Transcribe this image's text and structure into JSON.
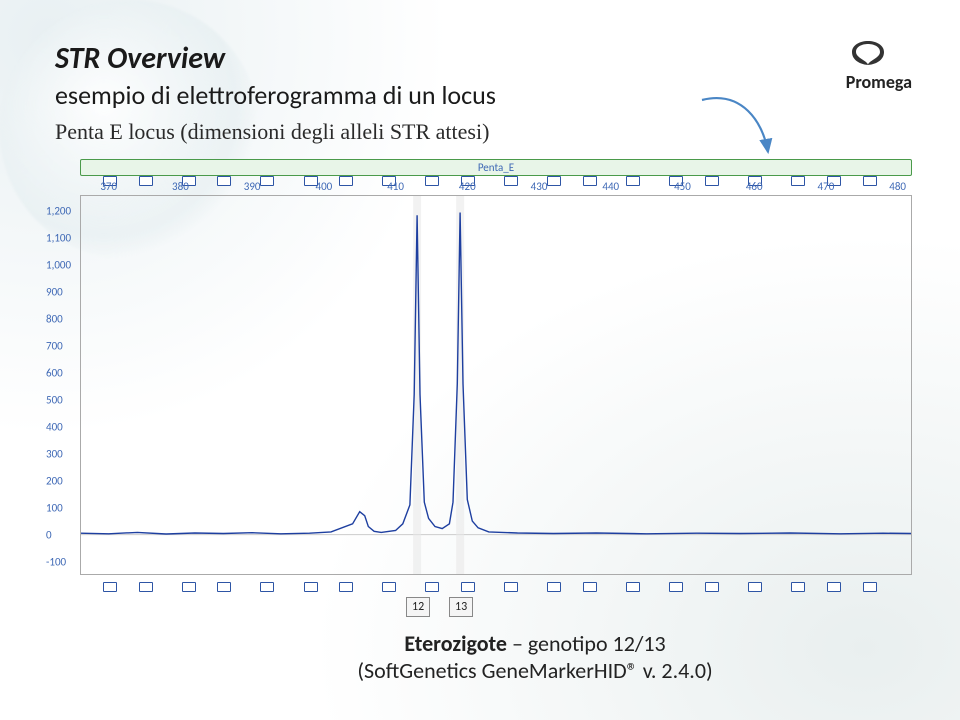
{
  "header": {
    "title": "STR Overview",
    "subtitle": "esempio di elettroferogramma di un locus",
    "description": "Penta E locus (dimensioni degli alleli STR attesi)"
  },
  "brand": {
    "name": "Promega",
    "color": "#222"
  },
  "chart": {
    "type": "line",
    "locus_label": "Penta_E",
    "panel_bg": "#ffffff",
    "grid_color": "#ffffff",
    "axis_color": "#888888",
    "label_color": "#3e68b5",
    "tick_fontsize": 11,
    "trace_color": "#1e3fa0",
    "ladder_box_border": "#2e55a5",
    "ladder_box_fill": "#ffffff",
    "locus_bar_fill": "#e8f5e8",
    "locus_bar_border": "#4a9a4a",
    "xlim": [
      366,
      482
    ],
    "ylim": [
      -150,
      1260
    ],
    "xticks": [
      370,
      380,
      390,
      400,
      410,
      420,
      430,
      440,
      450,
      460,
      470,
      480
    ],
    "yticks": [
      -100,
      0,
      100,
      200,
      300,
      400,
      500,
      600,
      700,
      800,
      900,
      1000,
      1100,
      1200
    ],
    "ladder_marks": [
      370,
      375,
      381,
      386,
      392,
      398,
      403,
      409,
      415,
      420,
      426,
      432,
      437,
      443,
      449,
      454,
      460,
      466,
      471,
      476
    ],
    "trace": [
      [
        366,
        5
      ],
      [
        370,
        3
      ],
      [
        374,
        8
      ],
      [
        378,
        2
      ],
      [
        382,
        6
      ],
      [
        386,
        4
      ],
      [
        390,
        7
      ],
      [
        394,
        3
      ],
      [
        398,
        5
      ],
      [
        401,
        10
      ],
      [
        404,
        40
      ],
      [
        405,
        85
      ],
      [
        405.7,
        70
      ],
      [
        406.2,
        30
      ],
      [
        407,
        12
      ],
      [
        408,
        8
      ],
      [
        410,
        15
      ],
      [
        411,
        40
      ],
      [
        412,
        110
      ],
      [
        412.6,
        520
      ],
      [
        413,
        1185
      ],
      [
        413.4,
        520
      ],
      [
        414,
        120
      ],
      [
        414.6,
        60
      ],
      [
        415.5,
        30
      ],
      [
        416.5,
        22
      ],
      [
        417.5,
        40
      ],
      [
        418,
        120
      ],
      [
        418.6,
        560
      ],
      [
        419,
        1195
      ],
      [
        419.4,
        560
      ],
      [
        420,
        130
      ],
      [
        420.7,
        50
      ],
      [
        421.5,
        25
      ],
      [
        423,
        10
      ],
      [
        427,
        6
      ],
      [
        432,
        4
      ],
      [
        438,
        6
      ],
      [
        445,
        3
      ],
      [
        452,
        5
      ],
      [
        458,
        4
      ],
      [
        465,
        6
      ],
      [
        472,
        3
      ],
      [
        478,
        5
      ],
      [
        482,
        4
      ]
    ],
    "allele_calls": [
      {
        "label": "12",
        "x": 413
      },
      {
        "label": "13",
        "x": 419
      }
    ],
    "call_box_border": "#888",
    "call_box_bg": "#f5f5f5",
    "arrow": {
      "color": "#4a86c5",
      "from": [
        702,
        100
      ],
      "to": [
        768,
        152
      ]
    }
  },
  "caption": {
    "bold": "Eterozigote",
    "rest_line1": " – genotipo 12/13",
    "line2": "(SoftGenetics GeneMarkerHID® v. 2.4.0)"
  }
}
